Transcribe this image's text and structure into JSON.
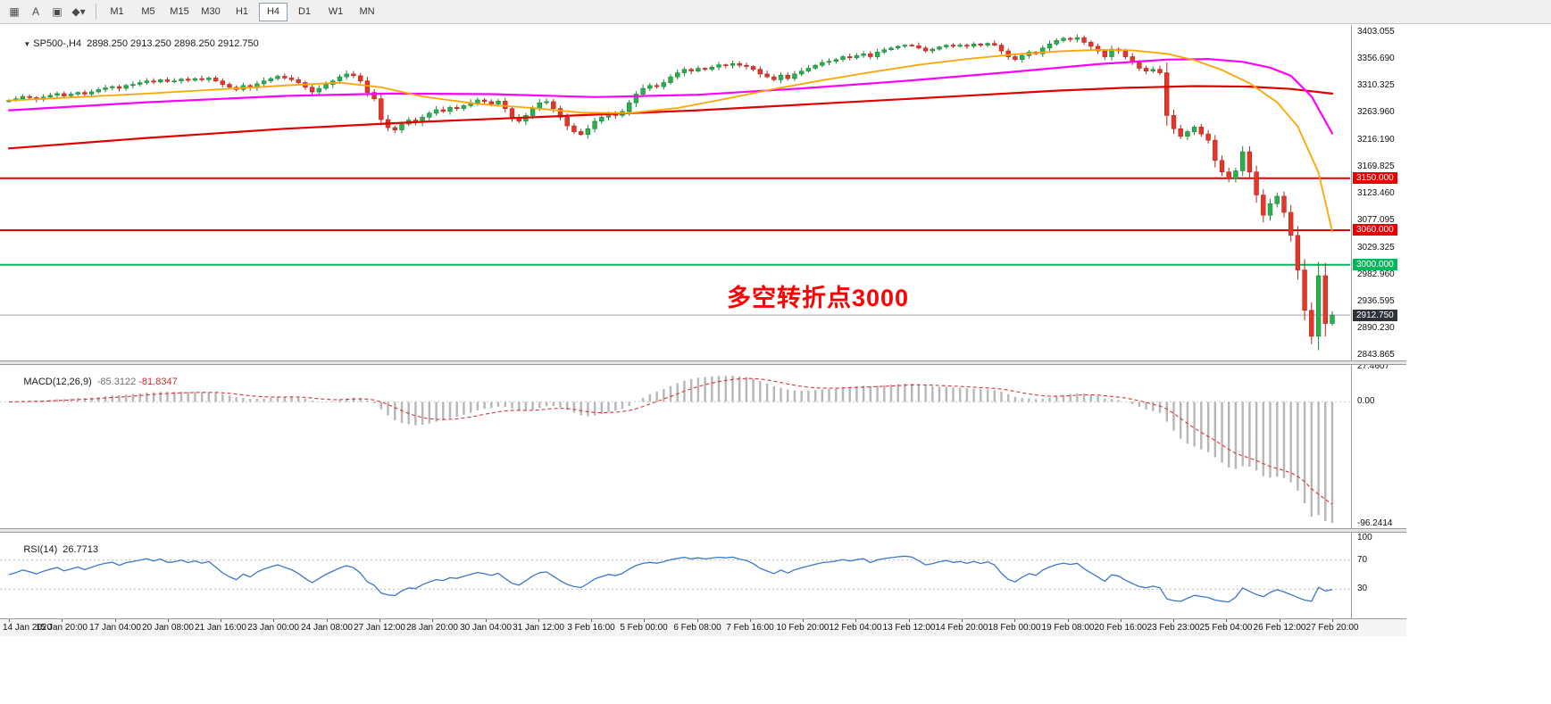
{
  "toolbar": {
    "icons": [
      {
        "name": "market-watch-icon",
        "glyph": "▦"
      },
      {
        "name": "text-cursor-tool-icon",
        "glyph": "A"
      },
      {
        "name": "data-window-icon",
        "glyph": "▣"
      },
      {
        "name": "indicators-dropdown-icon",
        "glyph": "◆▾"
      }
    ],
    "timeframes": [
      "M1",
      "M5",
      "M15",
      "M30",
      "H1",
      "H4",
      "D1",
      "W1",
      "MN"
    ],
    "active_timeframe": "H4"
  },
  "chart": {
    "header": {
      "marker": "▼",
      "symbol": "SP500-,H4",
      "ohlc": "2898.250 2913.250 2898.250 2912.750"
    },
    "annotation": "多空转折点3000",
    "axis": {
      "top": 3416,
      "bottom": 2834
    },
    "price_ticks": [
      "3403.055",
      "3356.690",
      "3310.325",
      "3263.960",
      "3216.190",
      "3169.825",
      "3123.460",
      "3077.095",
      "3029.325",
      "2982.960",
      "2936.595",
      "2890.230",
      "2843.865"
    ],
    "hlines": [
      {
        "value": 3150,
        "color": "#e80000",
        "w": 2
      },
      {
        "value": 3060,
        "color": "#e80000",
        "w": 2
      },
      {
        "value": 3000,
        "color": "#00b85c",
        "w": 2
      },
      {
        "value": 2912.75,
        "color": "#9aa4ac",
        "w": 1
      }
    ],
    "badges": [
      {
        "label": "3150.000",
        "value": 3150,
        "bg": "#e80000"
      },
      {
        "label": "3060.000",
        "value": 3060,
        "bg": "#e80000"
      },
      {
        "label": "3000.000",
        "value": 3000,
        "bg": "#00b85c"
      },
      {
        "label": "2912.750",
        "value": 2912.75,
        "bg": "#2e3238"
      }
    ],
    "current_price": "2912.750"
  },
  "chart_data": {
    "type": "candlestick",
    "title": "SP500-,H4",
    "symbol": "SP500-",
    "timeframe": "H4",
    "ohlc_display": {
      "open": "2898.250",
      "high": "2913.250",
      "low": "2898.250",
      "close": "2912.750"
    },
    "ylim": [
      2843.865,
      3403.055
    ],
    "horizontal_levels": [
      3150,
      3060,
      3000
    ],
    "closes": [
      3285,
      3288,
      3292,
      3290,
      3287,
      3291,
      3294,
      3297,
      3293,
      3296,
      3299,
      3296,
      3300,
      3304,
      3307,
      3309,
      3306,
      3311,
      3313,
      3316,
      3319,
      3317,
      3321,
      3318,
      3319,
      3322,
      3320,
      3323,
      3321,
      3324,
      3319,
      3313,
      3308,
      3304,
      3311,
      3307,
      3314,
      3319,
      3323,
      3327,
      3324,
      3321,
      3316,
      3308,
      3300,
      3306,
      3313,
      3319,
      3326,
      3331,
      3328,
      3319,
      3299,
      3288,
      3252,
      3238,
      3234,
      3244,
      3251,
      3247,
      3256,
      3263,
      3269,
      3266,
      3273,
      3271,
      3276,
      3281,
      3286,
      3283,
      3279,
      3284,
      3271,
      3256,
      3249,
      3259,
      3271,
      3281,
      3283,
      3271,
      3256,
      3241,
      3231,
      3226,
      3236,
      3249,
      3256,
      3263,
      3259,
      3266,
      3281,
      3296,
      3306,
      3311,
      3309,
      3316,
      3326,
      3333,
      3339,
      3336,
      3341,
      3339,
      3343,
      3347,
      3346,
      3349,
      3346,
      3344,
      3339,
      3331,
      3326,
      3321,
      3329,
      3323,
      3331,
      3336,
      3341,
      3346,
      3351,
      3353,
      3356,
      3361,
      3359,
      3363,
      3366,
      3361,
      3369,
      3373,
      3376,
      3379,
      3381,
      3380,
      3376,
      3371,
      3374,
      3378,
      3381,
      3379,
      3381,
      3379,
      3383,
      3381,
      3384,
      3381,
      3371,
      3361,
      3356,
      3363,
      3369,
      3366,
      3376,
      3383,
      3389,
      3393,
      3391,
      3394,
      3386,
      3379,
      3371,
      3361,
      3374,
      3371,
      3361,
      3351,
      3341,
      3336,
      3339,
      3333,
      3259,
      3236,
      3223,
      3231,
      3239,
      3227,
      3216,
      3181,
      3161,
      3149,
      3163,
      3196,
      3161,
      3121,
      3086,
      3106,
      3119,
      3091,
      3051,
      2991,
      2921,
      2876,
      2981,
      2898.25,
      2912.75
    ],
    "moving_averages": [
      {
        "name": "slow-red-ma",
        "color": "#e00000",
        "width": 2.2,
        "points": [
          [
            0,
            3202
          ],
          [
            20,
            3220
          ],
          [
            40,
            3236
          ],
          [
            60,
            3248
          ],
          [
            80,
            3258
          ],
          [
            100,
            3268
          ],
          [
            120,
            3281
          ],
          [
            140,
            3294
          ],
          [
            152,
            3302
          ],
          [
            162,
            3307
          ],
          [
            172,
            3310
          ],
          [
            180,
            3309
          ],
          [
            186,
            3305
          ],
          [
            192,
            3297
          ]
        ]
      },
      {
        "name": "medium-magenta-ma",
        "color": "#ff00ff",
        "width": 2.2,
        "points": [
          [
            0,
            3268
          ],
          [
            20,
            3282
          ],
          [
            40,
            3293
          ],
          [
            55,
            3297
          ],
          [
            70,
            3296
          ],
          [
            85,
            3291
          ],
          [
            100,
            3295
          ],
          [
            115,
            3306
          ],
          [
            130,
            3319
          ],
          [
            145,
            3334
          ],
          [
            158,
            3348
          ],
          [
            168,
            3356
          ],
          [
            174,
            3357
          ],
          [
            179,
            3352
          ],
          [
            183,
            3342
          ],
          [
            186,
            3328
          ],
          [
            189,
            3292
          ],
          [
            192,
            3228
          ]
        ]
      },
      {
        "name": "fast-orange-ma",
        "color": "#ffa500",
        "width": 1.8,
        "points": [
          [
            0,
            3285
          ],
          [
            10,
            3291
          ],
          [
            20,
            3297
          ],
          [
            30,
            3304
          ],
          [
            40,
            3311
          ],
          [
            48,
            3316
          ],
          [
            54,
            3308
          ],
          [
            60,
            3292
          ],
          [
            68,
            3279
          ],
          [
            76,
            3272
          ],
          [
            83,
            3264
          ],
          [
            90,
            3263
          ],
          [
            97,
            3272
          ],
          [
            104,
            3288
          ],
          [
            111,
            3305
          ],
          [
            118,
            3320
          ],
          [
            125,
            3334
          ],
          [
            132,
            3347
          ],
          [
            139,
            3357
          ],
          [
            146,
            3365
          ],
          [
            152,
            3370
          ],
          [
            158,
            3373
          ],
          [
            163,
            3372
          ],
          [
            168,
            3366
          ],
          [
            172,
            3355
          ],
          [
            176,
            3338
          ],
          [
            180,
            3315
          ],
          [
            184,
            3282
          ],
          [
            187,
            3240
          ],
          [
            190,
            3160
          ],
          [
            192,
            3058
          ]
        ]
      }
    ],
    "x_labels": [
      "14 Jan 2020",
      "15 Jan 20:00",
      "17 Jan 04:00",
      "20 Jan 08:00",
      "21 Jan 16:00",
      "23 Jan 00:00",
      "24 Jan 08:00",
      "27 Jan 12:00",
      "28 Jan 20:00",
      "30 Jan 04:00",
      "31 Jan 12:00",
      "3 Feb 16:00",
      "5 Feb 00:00",
      "6 Feb 08:00",
      "7 Feb 16:00",
      "10 Feb 20:00",
      "12 Feb 04:00",
      "13 Feb 12:00",
      "14 Feb 20:00",
      "18 Feb 00:00",
      "19 Feb 08:00",
      "20 Feb 16:00",
      "23 Feb 23:00",
      "25 Feb 04:00",
      "26 Feb 12:00",
      "27 Feb 20:00"
    ]
  },
  "macd": {
    "label": "MACD(12,26,9)",
    "value_main": "-85.3122",
    "value_signal": "-81.8347",
    "scale": [
      "27.4607",
      "0.00",
      "-96.2414"
    ],
    "params": {
      "fast": 12,
      "slow": 26,
      "signal": 9
    }
  },
  "rsi": {
    "label": "RSI(14)",
    "value": "26.7713",
    "period": 14,
    "levels": [
      70,
      30
    ],
    "scale": [
      "100",
      "70",
      "30"
    ]
  }
}
